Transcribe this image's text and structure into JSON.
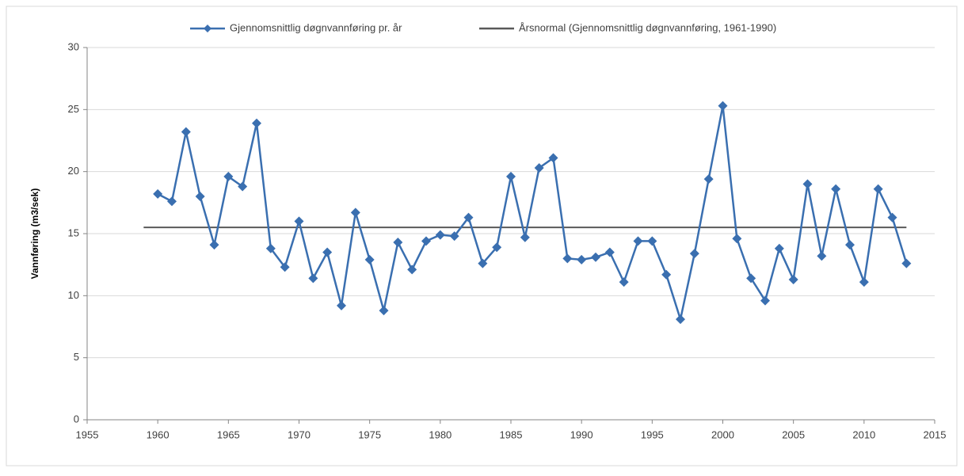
{
  "chart_data": {
    "type": "line",
    "y_label": "Vannføring (m3/sek)",
    "xlim": [
      1955,
      2015
    ],
    "xticks": [
      1955,
      1960,
      1965,
      1970,
      1975,
      1980,
      1985,
      1990,
      1995,
      2000,
      2005,
      2010,
      2015
    ],
    "ylim": [
      0,
      30
    ],
    "yticks": [
      0,
      5,
      10,
      15,
      20,
      25,
      30
    ],
    "grid": true,
    "legend": "top",
    "series": [
      {
        "name": "Gjennomsnittlig døgnvannføring pr. år",
        "color": "#3a6fb0",
        "marker": "diamond",
        "x": [
          1960,
          1961,
          1962,
          1963,
          1964,
          1965,
          1966,
          1967,
          1968,
          1969,
          1970,
          1971,
          1972,
          1973,
          1974,
          1975,
          1976,
          1977,
          1978,
          1979,
          1980,
          1981,
          1982,
          1983,
          1984,
          1985,
          1986,
          1987,
          1988,
          1989,
          1990,
          1991,
          1992,
          1993,
          1994,
          1995,
          1996,
          1997,
          1998,
          1999,
          2000,
          2001,
          2002,
          2003,
          2004,
          2005,
          2006,
          2007,
          2008,
          2009,
          2010,
          2011,
          2012,
          2013
        ],
        "values": [
          18.2,
          17.6,
          23.2,
          18.0,
          14.1,
          19.6,
          18.8,
          23.9,
          13.8,
          12.3,
          16.0,
          11.4,
          13.5,
          9.2,
          16.7,
          12.9,
          8.8,
          14.3,
          12.1,
          14.4,
          14.9,
          14.8,
          16.3,
          12.6,
          13.9,
          19.6,
          14.7,
          20.3,
          21.1,
          13.0,
          12.9,
          13.1,
          13.5,
          11.1,
          14.4,
          14.4,
          11.7,
          8.1,
          13.4,
          19.4,
          25.3,
          14.6,
          11.4,
          9.6,
          13.8,
          11.3,
          19.0,
          13.2,
          18.6,
          14.1,
          11.1,
          18.6,
          16.3,
          12.6
        ]
      },
      {
        "name": "Årsnormal (Gjennomsnittlig døgnvannføring, 1961-1990)",
        "color": "#595959",
        "x": [
          1959,
          2013
        ],
        "values": [
          15.5,
          15.5
        ]
      }
    ]
  }
}
